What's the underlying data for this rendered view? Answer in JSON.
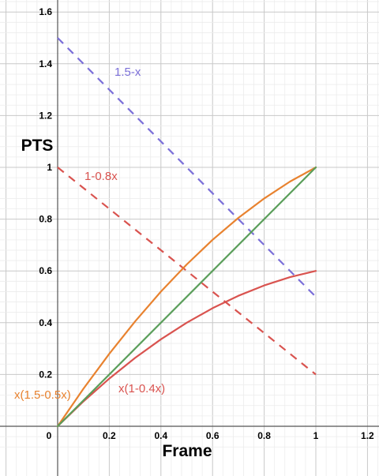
{
  "chart_data": {
    "type": "line",
    "xlabel": "Frame",
    "ylabel": "PTS",
    "xlim": [
      0,
      1.2
    ],
    "ylim": [
      0,
      1.6
    ],
    "grid": true,
    "minor_grid": true,
    "x_ticks": [
      "0",
      "0.2",
      "0.4",
      "0.6",
      "0.8",
      "1",
      "1.2"
    ],
    "y_ticks": [
      "0.2",
      "0.4",
      "0.6",
      "0.8",
      "1",
      "1.2",
      "1.4",
      "1.6"
    ],
    "series": [
      {
        "name": "1.5-x",
        "color": "#7b6fd8",
        "style": "dashed",
        "x": [
          0,
          1
        ],
        "y": [
          1.5,
          0.5
        ]
      },
      {
        "name": "1-0.8x",
        "color": "#d9534f",
        "style": "dashed",
        "x": [
          0,
          1
        ],
        "y": [
          1.0,
          0.2
        ]
      },
      {
        "name": "x(1.5-0.5x)",
        "color": "#e8822f",
        "style": "solid",
        "x": [
          0,
          0.1,
          0.2,
          0.3,
          0.4,
          0.5,
          0.6,
          0.7,
          0.8,
          0.9,
          1.0
        ],
        "y": [
          0,
          0.145,
          0.28,
          0.405,
          0.52,
          0.625,
          0.72,
          0.805,
          0.88,
          0.945,
          1.0
        ]
      },
      {
        "name": "x(1-0.4x)",
        "color": "#d9534f",
        "style": "solid",
        "x": [
          0,
          0.1,
          0.2,
          0.3,
          0.4,
          0.5,
          0.6,
          0.7,
          0.8,
          0.9,
          1.0
        ],
        "y": [
          0,
          0.096,
          0.184,
          0.264,
          0.336,
          0.4,
          0.456,
          0.504,
          0.544,
          0.576,
          0.6
        ]
      },
      {
        "name": "",
        "color": "#5a9e5a",
        "style": "solid",
        "x": [
          0,
          1
        ],
        "y": [
          0,
          1
        ]
      }
    ]
  }
}
